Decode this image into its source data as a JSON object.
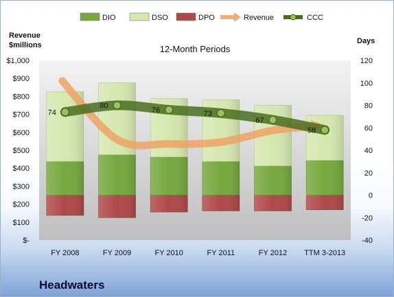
{
  "chart_data": {
    "type": "bar",
    "title": "12-Month Periods",
    "y_left_label": "Revenue\n$millions",
    "y_right_label": "Days",
    "categories": [
      "FY 2008",
      "FY 2009",
      "FY 2010",
      "FY 2011",
      "FY 2012",
      "TTM 3-2013"
    ],
    "left_axis": {
      "min": 0,
      "max": 1000,
      "step": 100,
      "ticks": [
        "$-",
        "$100",
        "$200",
        "$300",
        "$400",
        "$500",
        "$600",
        "$700",
        "$800",
        "$900",
        "$1,000"
      ]
    },
    "right_axis": {
      "min": -40,
      "max": 120,
      "step": 20,
      "ticks": [
        "-40",
        "-20",
        "0",
        "20",
        "40",
        "60",
        "80",
        "100",
        "120"
      ]
    },
    "stacked_days_series": [
      {
        "name": "DPO",
        "color": "#b04848",
        "values": [
          -18,
          -20,
          -15,
          -14,
          -14,
          -13
        ]
      },
      {
        "name": "DIO",
        "color": "#76a83e",
        "values": [
          30,
          36,
          34,
          30,
          26,
          31
        ]
      },
      {
        "name": "DSO",
        "color": "#d5e8b0",
        "values": [
          62,
          64,
          52,
          55,
          54,
          40
        ]
      }
    ],
    "revenue": {
      "name": "Revenue",
      "unit": "$millions",
      "color": "#f0a060",
      "values": [
        885,
        560,
        535,
        545,
        610,
        635
      ]
    },
    "ccc": {
      "name": "CCC",
      "color": "#5a8028",
      "values": [
        74,
        80,
        76,
        73,
        67,
        58
      ],
      "labels": [
        "74",
        "80",
        "76",
        "73",
        "67",
        "58"
      ]
    },
    "legend": [
      "DIO",
      "DSO",
      "DPO",
      "Revenue",
      "CCC"
    ],
    "legend_position": "top",
    "grid": false
  },
  "company": "Headwaters"
}
